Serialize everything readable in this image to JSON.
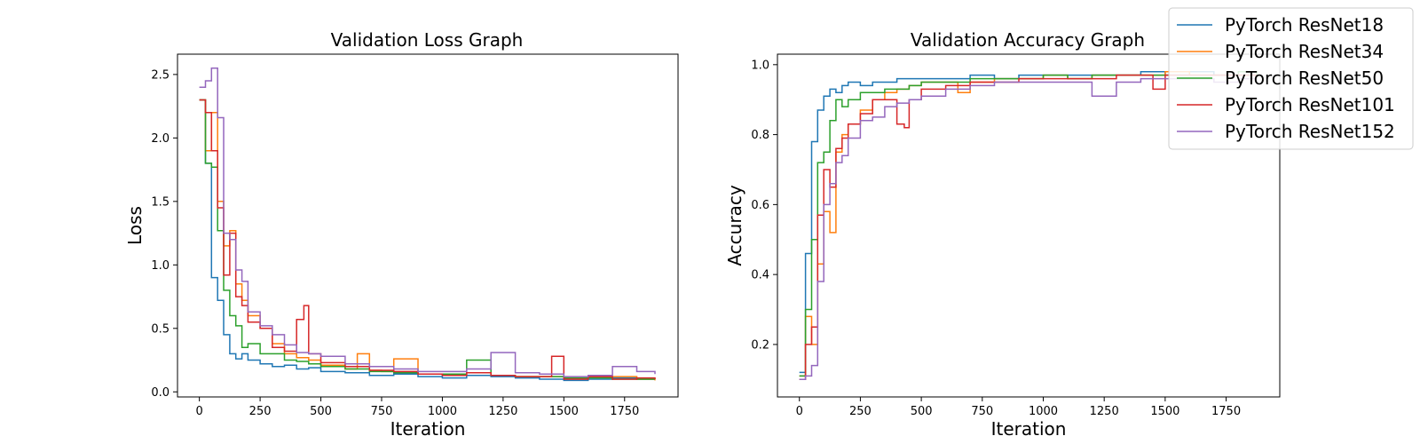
{
  "chart_data": [
    {
      "type": "line",
      "title": "Validation Loss Graph",
      "xlabel": "Iteration",
      "ylabel": "Loss",
      "xlim": [
        -90,
        1970
      ],
      "ylim": [
        -0.04,
        2.66
      ],
      "xticks": [
        0,
        250,
        500,
        750,
        1000,
        1250,
        1500,
        1750
      ],
      "yticks": [
        0.0,
        0.5,
        1.0,
        1.5,
        2.0,
        2.5
      ],
      "ytick_decimals": 1,
      "grid": false,
      "step": true,
      "series": [
        {
          "name": "PyTorch ResNet18",
          "x": [
            0,
            25,
            50,
            75,
            100,
            125,
            150,
            175,
            200,
            250,
            300,
            350,
            400,
            450,
            500,
            600,
            700,
            800,
            900,
            1000,
            1100,
            1200,
            1300,
            1400,
            1500,
            1600,
            1700,
            1800,
            1875
          ],
          "y": [
            2.3,
            1.8,
            0.9,
            0.72,
            0.45,
            0.3,
            0.26,
            0.3,
            0.25,
            0.22,
            0.2,
            0.21,
            0.18,
            0.19,
            0.16,
            0.15,
            0.13,
            0.14,
            0.12,
            0.11,
            0.13,
            0.12,
            0.11,
            0.1,
            0.09,
            0.1,
            0.11,
            0.1,
            0.1
          ]
        },
        {
          "name": "PyTorch ResNet34",
          "x": [
            0,
            25,
            50,
            75,
            100,
            125,
            150,
            175,
            200,
            250,
            300,
            350,
            400,
            450,
            500,
            600,
            650,
            700,
            750,
            800,
            900,
            1000,
            1100,
            1200,
            1300,
            1400,
            1500,
            1600,
            1700,
            1800,
            1875
          ],
          "y": [
            2.3,
            1.9,
            2.2,
            1.5,
            1.15,
            1.27,
            0.85,
            0.72,
            0.6,
            0.5,
            0.38,
            0.3,
            0.27,
            0.25,
            0.21,
            0.18,
            0.3,
            0.17,
            0.16,
            0.26,
            0.14,
            0.13,
            0.15,
            0.13,
            0.12,
            0.12,
            0.11,
            0.12,
            0.12,
            0.1,
            0.09
          ]
        },
        {
          "name": "PyTorch ResNet50",
          "x": [
            0,
            25,
            50,
            75,
            100,
            125,
            150,
            175,
            200,
            250,
            300,
            350,
            400,
            450,
            500,
            600,
            700,
            800,
            900,
            1000,
            1100,
            1200,
            1300,
            1400,
            1500,
            1600,
            1700,
            1800,
            1875
          ],
          "y": [
            2.3,
            1.8,
            1.77,
            1.27,
            0.8,
            0.6,
            0.52,
            0.35,
            0.38,
            0.3,
            0.3,
            0.25,
            0.24,
            0.22,
            0.2,
            0.18,
            0.16,
            0.15,
            0.14,
            0.14,
            0.25,
            0.13,
            0.12,
            0.12,
            0.11,
            0.11,
            0.1,
            0.1,
            0.1
          ]
        },
        {
          "name": "PyTorch ResNet101",
          "x": [
            0,
            25,
            50,
            75,
            100,
            125,
            150,
            175,
            200,
            250,
            300,
            350,
            400,
            430,
            450,
            500,
            600,
            700,
            800,
            900,
            1000,
            1100,
            1200,
            1300,
            1400,
            1450,
            1500,
            1600,
            1700,
            1800,
            1875
          ],
          "y": [
            2.3,
            2.2,
            1.9,
            1.45,
            0.92,
            1.25,
            0.75,
            0.68,
            0.55,
            0.5,
            0.35,
            0.32,
            0.57,
            0.68,
            0.3,
            0.23,
            0.2,
            0.17,
            0.16,
            0.14,
            0.13,
            0.15,
            0.13,
            0.12,
            0.12,
            0.28,
            0.1,
            0.12,
            0.1,
            0.11,
            0.1
          ]
        },
        {
          "name": "PyTorch ResNet152",
          "x": [
            0,
            25,
            50,
            75,
            100,
            125,
            150,
            175,
            200,
            250,
            300,
            350,
            400,
            450,
            500,
            600,
            700,
            800,
            900,
            1000,
            1100,
            1200,
            1300,
            1400,
            1500,
            1600,
            1700,
            1800,
            1875
          ],
          "y": [
            2.4,
            2.45,
            2.55,
            2.16,
            1.25,
            1.2,
            0.96,
            0.87,
            0.63,
            0.52,
            0.45,
            0.37,
            0.31,
            0.3,
            0.28,
            0.22,
            0.2,
            0.18,
            0.16,
            0.16,
            0.18,
            0.31,
            0.15,
            0.14,
            0.12,
            0.13,
            0.2,
            0.16,
            0.14
          ]
        }
      ]
    },
    {
      "type": "line",
      "title": "Validation Accuracy Graph",
      "xlabel": "Iteration",
      "ylabel": "Accuracy",
      "xlim": [
        -90,
        1970
      ],
      "ylim": [
        0.05,
        1.03
      ],
      "xticks": [
        0,
        250,
        500,
        750,
        1000,
        1250,
        1500,
        1750
      ],
      "yticks": [
        0.2,
        0.4,
        0.6,
        0.8,
        1.0
      ],
      "ytick_decimals": 1,
      "grid": false,
      "step": true,
      "series": [
        {
          "name": "PyTorch ResNet18",
          "x": [
            0,
            25,
            50,
            75,
            100,
            125,
            150,
            175,
            200,
            250,
            300,
            350,
            400,
            450,
            500,
            600,
            700,
            800,
            900,
            1000,
            1100,
            1200,
            1300,
            1400,
            1500,
            1600,
            1700,
            1800,
            1875
          ],
          "y": [
            0.12,
            0.46,
            0.78,
            0.87,
            0.91,
            0.93,
            0.92,
            0.94,
            0.95,
            0.94,
            0.95,
            0.95,
            0.96,
            0.96,
            0.96,
            0.96,
            0.97,
            0.96,
            0.97,
            0.97,
            0.97,
            0.97,
            0.97,
            0.98,
            0.97,
            0.98,
            0.97,
            0.97,
            0.97
          ]
        },
        {
          "name": "PyTorch ResNet34",
          "x": [
            0,
            25,
            50,
            75,
            100,
            125,
            150,
            175,
            200,
            250,
            300,
            350,
            400,
            450,
            500,
            600,
            650,
            700,
            800,
            900,
            1000,
            1100,
            1200,
            1300,
            1400,
            1500,
            1600,
            1700,
            1800,
            1875
          ],
          "y": [
            0.11,
            0.28,
            0.2,
            0.43,
            0.58,
            0.52,
            0.75,
            0.8,
            0.83,
            0.87,
            0.9,
            0.92,
            0.93,
            0.94,
            0.95,
            0.95,
            0.92,
            0.95,
            0.96,
            0.96,
            0.97,
            0.96,
            0.97,
            0.97,
            0.97,
            0.98,
            0.97,
            0.97,
            0.97,
            0.97
          ]
        },
        {
          "name": "PyTorch ResNet50",
          "x": [
            0,
            25,
            50,
            75,
            100,
            125,
            150,
            175,
            200,
            250,
            300,
            350,
            400,
            450,
            500,
            600,
            700,
            800,
            900,
            1000,
            1100,
            1200,
            1300,
            1400,
            1500,
            1600,
            1700,
            1800,
            1875
          ],
          "y": [
            0.11,
            0.3,
            0.5,
            0.72,
            0.75,
            0.84,
            0.9,
            0.88,
            0.9,
            0.92,
            0.92,
            0.93,
            0.93,
            0.94,
            0.95,
            0.95,
            0.96,
            0.96,
            0.96,
            0.97,
            0.96,
            0.97,
            0.97,
            0.97,
            0.97,
            0.97,
            0.97,
            0.98,
            0.97
          ]
        },
        {
          "name": "PyTorch ResNet101",
          "x": [
            0,
            25,
            50,
            75,
            100,
            125,
            150,
            175,
            200,
            250,
            300,
            350,
            400,
            430,
            450,
            500,
            600,
            700,
            800,
            900,
            1000,
            1100,
            1200,
            1300,
            1400,
            1450,
            1500,
            1600,
            1700,
            1800,
            1875
          ],
          "y": [
            0.1,
            0.2,
            0.25,
            0.57,
            0.7,
            0.65,
            0.76,
            0.79,
            0.83,
            0.86,
            0.9,
            0.9,
            0.83,
            0.82,
            0.9,
            0.93,
            0.94,
            0.95,
            0.95,
            0.96,
            0.96,
            0.96,
            0.96,
            0.97,
            0.97,
            0.93,
            0.97,
            0.97,
            0.97,
            0.97,
            0.97
          ]
        },
        {
          "name": "PyTorch ResNet152",
          "x": [
            0,
            25,
            50,
            75,
            100,
            125,
            150,
            175,
            200,
            250,
            300,
            350,
            400,
            450,
            500,
            600,
            700,
            800,
            900,
            1000,
            1100,
            1200,
            1300,
            1400,
            1500,
            1600,
            1700,
            1800,
            1875
          ],
          "y": [
            0.1,
            0.11,
            0.14,
            0.38,
            0.6,
            0.66,
            0.72,
            0.74,
            0.79,
            0.84,
            0.85,
            0.88,
            0.89,
            0.9,
            0.91,
            0.93,
            0.94,
            0.95,
            0.95,
            0.95,
            0.95,
            0.91,
            0.95,
            0.96,
            0.96,
            0.96,
            0.95,
            0.96,
            0.96
          ]
        }
      ]
    }
  ],
  "legend": {
    "placement": "top-right",
    "entries": [
      {
        "label": "PyTorch ResNet18",
        "color": "#1f77b4"
      },
      {
        "label": "PyTorch ResNet34",
        "color": "#ff7f0e"
      },
      {
        "label": "PyTorch ResNet50",
        "color": "#2ca02c"
      },
      {
        "label": "PyTorch ResNet101",
        "color": "#d62728"
      },
      {
        "label": "PyTorch ResNet152",
        "color": "#9467bd"
      }
    ]
  }
}
